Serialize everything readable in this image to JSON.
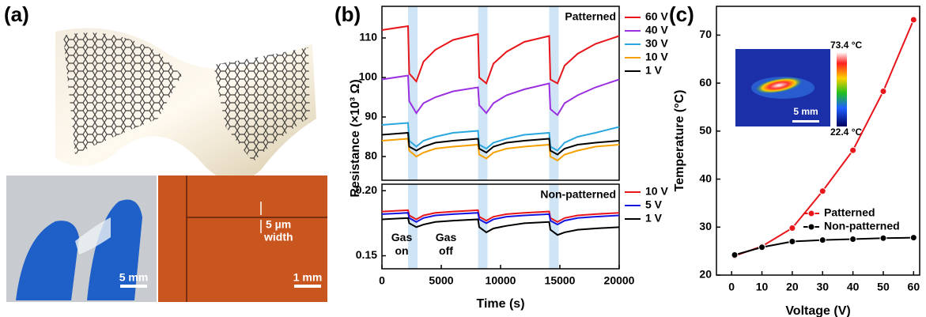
{
  "panel_labels": [
    "(a)",
    "(b)",
    "(c)"
  ],
  "panel_a": {
    "scale_bars": [
      "5 mm",
      "1 mm"
    ],
    "width_note": [
      "5 µm",
      "width"
    ]
  },
  "chart_data": [
    {
      "type": "line",
      "ylabel": "Resistance (×10³ Ω)",
      "legend": "outside right",
      "legend_title": "Patterned",
      "x": [
        0,
        2200,
        2300,
        2900,
        3500,
        4500,
        6000,
        8100,
        8200,
        8800,
        9400,
        10500,
        12000,
        14100,
        14200,
        14800,
        15400,
        16500,
        18000,
        20000
      ],
      "xlim": [
        0,
        20000
      ],
      "ylim": [
        74,
        118
      ],
      "yticks": [
        80,
        90,
        100,
        110
      ],
      "gas_spans": [
        [
          2200,
          3000
        ],
        [
          8100,
          8900
        ],
        [
          14100,
          14900
        ]
      ],
      "series": [
        {
          "name": "60 V",
          "color": "#e8151b",
          "values": [
            112,
            113,
            101,
            99,
            104,
            107,
            109.5,
            111,
            100,
            98.5,
            103.5,
            106.5,
            109,
            110.5,
            99.5,
            98.5,
            103,
            106,
            108.5,
            110.5
          ]
        },
        {
          "name": "40 V",
          "color": "#9b30e0",
          "values": [
            99.5,
            100.5,
            94,
            91,
            93.5,
            95,
            96.5,
            97.5,
            93,
            91,
            93.5,
            95.5,
            97,
            98.5,
            92,
            90.5,
            93.5,
            95.5,
            97.5,
            99.5
          ]
        },
        {
          "name": "30 V",
          "color": "#2aa7de",
          "values": [
            88,
            88.5,
            84,
            82.5,
            84,
            85,
            86,
            86.5,
            83,
            82,
            83.5,
            84.5,
            85.5,
            86,
            82.5,
            81.5,
            83.5,
            85,
            86,
            87.5
          ]
        },
        {
          "name": "10 V",
          "color": "#f5a000",
          "values": [
            84,
            84.5,
            81.5,
            80,
            81,
            82,
            82.5,
            83,
            80.5,
            79.5,
            81,
            82,
            82.5,
            83,
            80,
            79,
            80.5,
            81.5,
            82.5,
            83
          ]
        },
        {
          "name": "1 V",
          "color": "#000000",
          "values": [
            85.5,
            86,
            82.5,
            81.5,
            82.5,
            83.5,
            84,
            84.5,
            82,
            81,
            82.5,
            83.5,
            84,
            84.5,
            81.5,
            80.5,
            82,
            83,
            83.5,
            84
          ]
        }
      ]
    },
    {
      "type": "line",
      "xlabel": "Time (s)",
      "legend": "outside right",
      "legend_title": "Non-patterned",
      "annotations": [
        "Gas on",
        "Gas off"
      ],
      "x": [
        0,
        2200,
        2300,
        2900,
        3500,
        4500,
        6000,
        8100,
        8200,
        8800,
        9400,
        10500,
        12000,
        14100,
        14200,
        14800,
        15400,
        16500,
        18000,
        20000
      ],
      "xlim": [
        0,
        20000
      ],
      "xticks": [
        0,
        5000,
        10000,
        15000,
        20000
      ],
      "ylim": [
        0.14,
        0.205
      ],
      "yticks": [
        0.15,
        {
          "value": 0.2,
          "label": "0.20"
        }
      ],
      "gas_spans": [
        [
          2200,
          3000
        ],
        [
          8100,
          8900
        ],
        [
          14100,
          14900
        ]
      ],
      "series": [
        {
          "name": "10 V",
          "color": "#e8151b",
          "values": [
            0.184,
            0.185,
            0.181,
            0.178,
            0.181,
            0.183,
            0.184,
            0.185,
            0.18,
            0.177,
            0.18,
            0.182,
            0.183,
            0.184,
            0.179,
            0.176,
            0.179,
            0.181,
            0.182,
            0.183
          ]
        },
        {
          "name": "5 V",
          "color": "#1414e0",
          "values": [
            0.182,
            0.183,
            0.179,
            0.176,
            0.179,
            0.181,
            0.182,
            0.183,
            0.178,
            0.175,
            0.178,
            0.18,
            0.181,
            0.182,
            0.177,
            0.174,
            0.177,
            0.179,
            0.18,
            0.181
          ]
        },
        {
          "name": "1 V",
          "color": "#000000",
          "values": [
            0.178,
            0.179,
            0.175,
            0.172,
            0.174,
            0.176,
            0.177,
            0.178,
            0.172,
            0.168,
            0.171,
            0.173,
            0.175,
            0.176,
            0.17,
            0.166,
            0.168,
            0.17,
            0.171,
            0.172
          ]
        }
      ]
    },
    {
      "type": "line",
      "markers": true,
      "xlabel": "Voltage (V)",
      "ylabel": "Temperature (°C)",
      "legend": "lower right",
      "x": [
        1,
        10,
        20,
        30,
        40,
        50,
        60
      ],
      "xlim": [
        -5,
        62
      ],
      "xticks": [
        0,
        10,
        20,
        30,
        40,
        50,
        60
      ],
      "ylim": [
        20,
        76
      ],
      "yticks": [
        20,
        30,
        40,
        50,
        60,
        70
      ],
      "inset": {
        "max_label": "73.4 °C",
        "min_label": "22.4 °C",
        "scale_bar": "5 mm"
      },
      "series": [
        {
          "name": "Patterned",
          "color": "#e8151b",
          "values": [
            24,
            26,
            29.8,
            37.5,
            46,
            58.3,
            73.2
          ]
        },
        {
          "name": "Non-patterned",
          "color": "#000000",
          "values": [
            24.2,
            25.8,
            27,
            27.3,
            27.5,
            27.7,
            27.8
          ]
        }
      ]
    }
  ]
}
